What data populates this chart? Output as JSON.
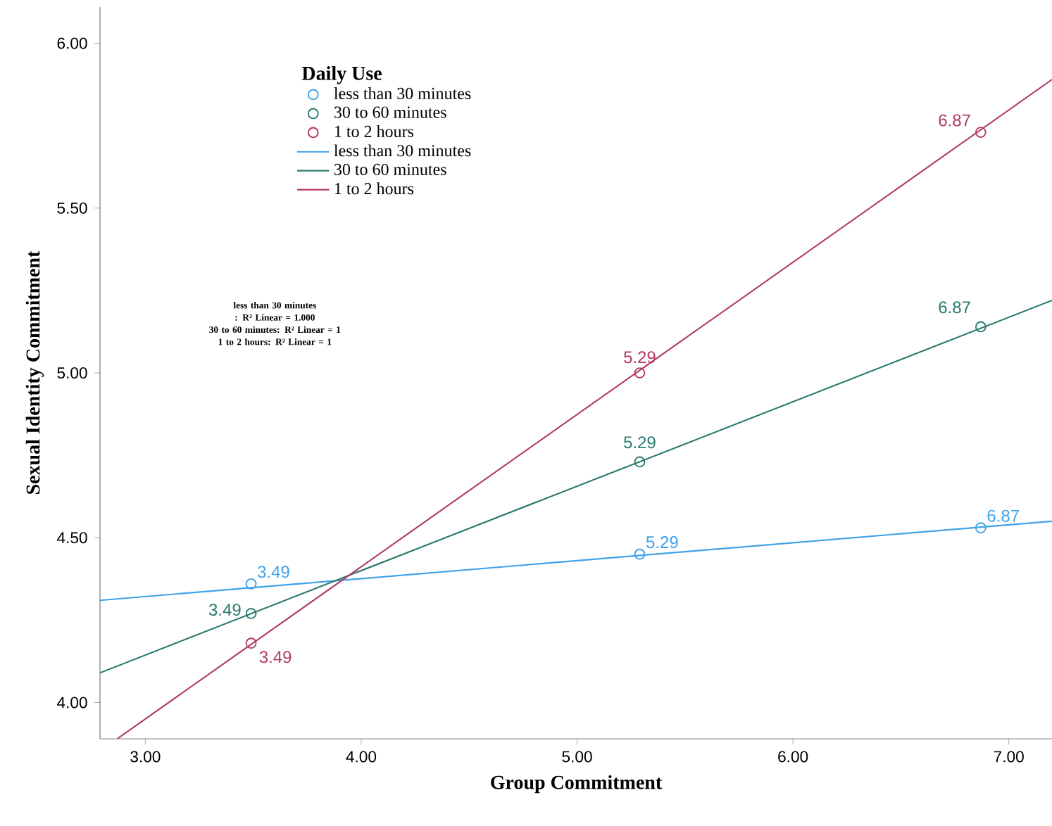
{
  "chart_data": {
    "type": "scatter",
    "xlabel": "Group Commitment",
    "ylabel": "Sexual Identity Commitment",
    "legend_title": "Daily Use",
    "legend": "top left",
    "grid": false,
    "xlim": [
      2.79,
      7.2
    ],
    "ylim": [
      3.89,
      6.11
    ],
    "xticks": [
      {
        "value": 3,
        "label": "3.00"
      },
      {
        "value": 4,
        "label": "4.00"
      },
      {
        "value": 5,
        "label": "5.00"
      },
      {
        "value": 6,
        "label": "6.00"
      },
      {
        "value": 7,
        "label": "7.00"
      }
    ],
    "yticks": [
      {
        "value": 4,
        "label": "4.00"
      },
      {
        "value": 4.5,
        "label": "4.50"
      },
      {
        "value": 5,
        "label": "5.00"
      },
      {
        "value": 5.5,
        "label": "5.50"
      },
      {
        "value": 6,
        "label": "6.00"
      }
    ],
    "annotations": [
      "less than 30 minutes : R² Linear = 1.000",
      "30 to 60 minutes: R² Linear = 1",
      "1 to 2 hours: R² Linear = 1",
      {
        "text": "3.49",
        "x": 3.49,
        "y": 4.36
      },
      {
        "text": "5.29",
        "x": 5.29,
        "y": 4.45
      },
      {
        "text": "6.87",
        "x": 6.87,
        "y": 4.53
      },
      {
        "text": "3.49",
        "x": 3.49,
        "y": 4.27
      },
      {
        "text": "5.29",
        "x": 5.29,
        "y": 4.73
      },
      {
        "text": "6.87",
        "x": 6.87,
        "y": 5.14
      },
      {
        "text": "3.49",
        "x": 3.49,
        "y": 4.18
      },
      {
        "text": "5.29",
        "x": 5.29,
        "y": 5.0
      },
      {
        "text": "6.87",
        "x": 6.87,
        "y": 5.73
      }
    ],
    "series": [
      {
        "name": "less than 30 minutes",
        "marker": "circle",
        "color": "#3fa2ea",
        "x": [
          3.49,
          5.29,
          6.87
        ],
        "values": [
          4.36,
          4.45,
          4.53
        ]
      },
      {
        "name": "30 to 60 minutes",
        "marker": "circle",
        "color": "#2a7b6f",
        "x": [
          3.49,
          5.29,
          6.87
        ],
        "values": [
          4.27,
          4.73,
          5.14
        ]
      },
      {
        "name": "1 to 2 hours",
        "marker": "circle",
        "color": "#b23a64",
        "x": [
          3.49,
          5.29,
          6.87
        ],
        "values": [
          4.18,
          5.0,
          5.73
        ]
      },
      {
        "name": "less than 30 minutes",
        "type": "line",
        "marker": "none",
        "color": "#3fa2ea",
        "x": [
          2.79,
          7.2
        ],
        "values": [
          4.31,
          4.55
        ]
      },
      {
        "name": "30 to 60 minutes",
        "type": "line",
        "marker": "none",
        "color": "#2a7b6f",
        "x": [
          2.79,
          7.2
        ],
        "values": [
          4.09,
          5.22
        ]
      },
      {
        "name": "1 to 2 hours",
        "type": "line",
        "marker": "none",
        "color": "#b23a64",
        "x": [
          2.87,
          7.2
        ],
        "values": [
          3.89,
          5.89
        ]
      }
    ]
  }
}
